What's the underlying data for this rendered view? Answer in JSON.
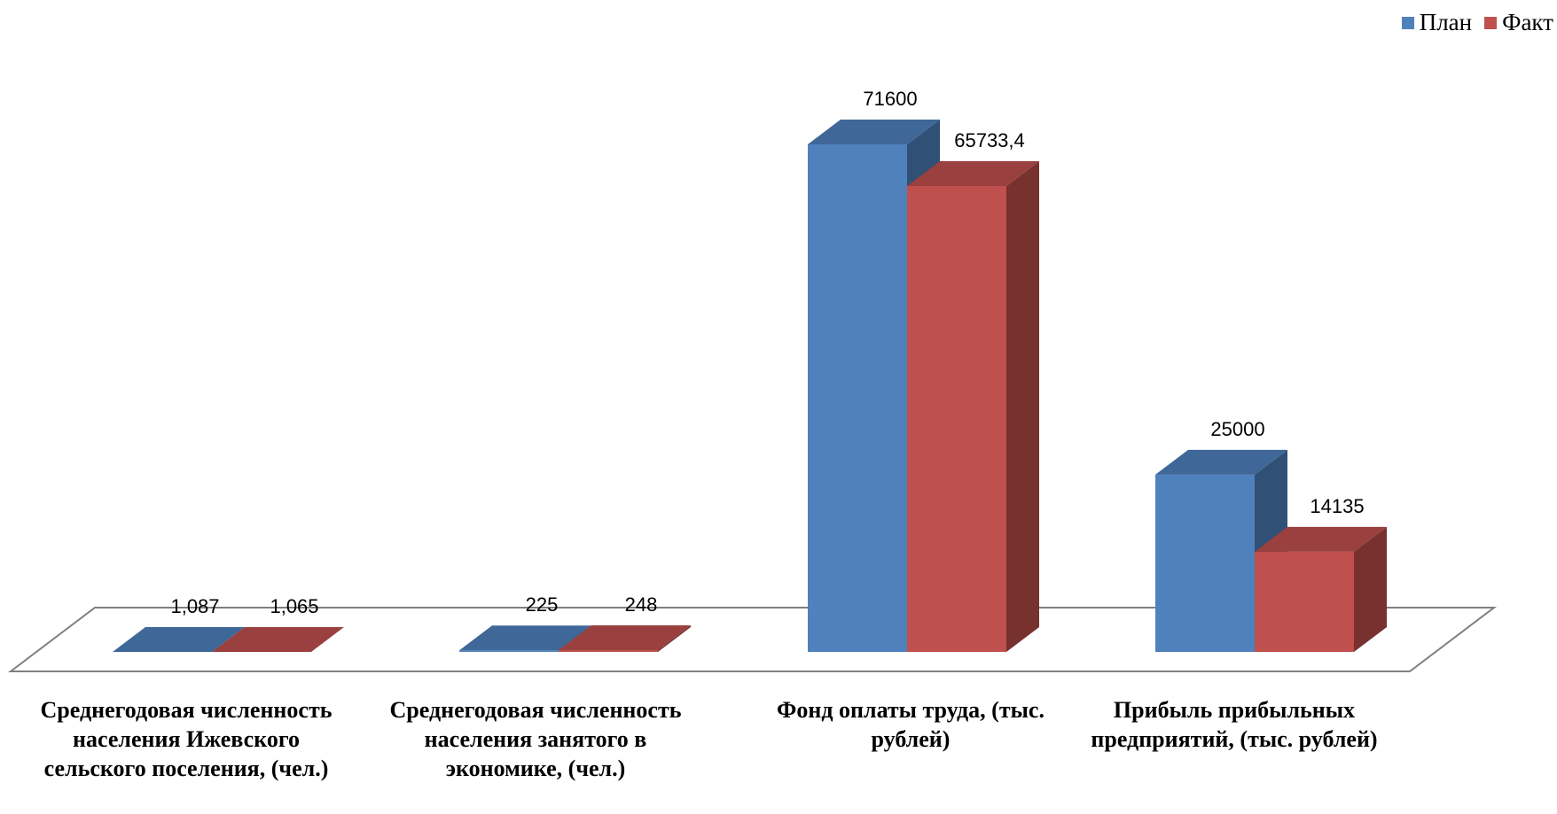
{
  "chart_data": {
    "type": "bar",
    "title": "",
    "categories": [
      "Среднегодовая численность населения Ижевского сельского поселения, (чел.)",
      "Среднегодовая численность населения занятого в экономике, (чел.)",
      "Фонд оплаты труда, (тыс. рублей)",
      "Прибыль прибыльных предприятий, (тыс. рублей)"
    ],
    "series": [
      {
        "name": "План",
        "color": "#4F81BD",
        "values": [
          1.087,
          225,
          71600,
          25000
        ],
        "labels": [
          "1,087",
          "225",
          "71600",
          "25000"
        ]
      },
      {
        "name": "Факт",
        "color": "#C0504D",
        "values": [
          1.065,
          248,
          65733.4,
          14135
        ],
        "labels": [
          "1,065",
          "248",
          "65733,4",
          "14135"
        ]
      }
    ],
    "ylim": [
      0,
      71600
    ],
    "grid": false,
    "legend_position": "top-right",
    "style": "3d-clustered-column"
  }
}
